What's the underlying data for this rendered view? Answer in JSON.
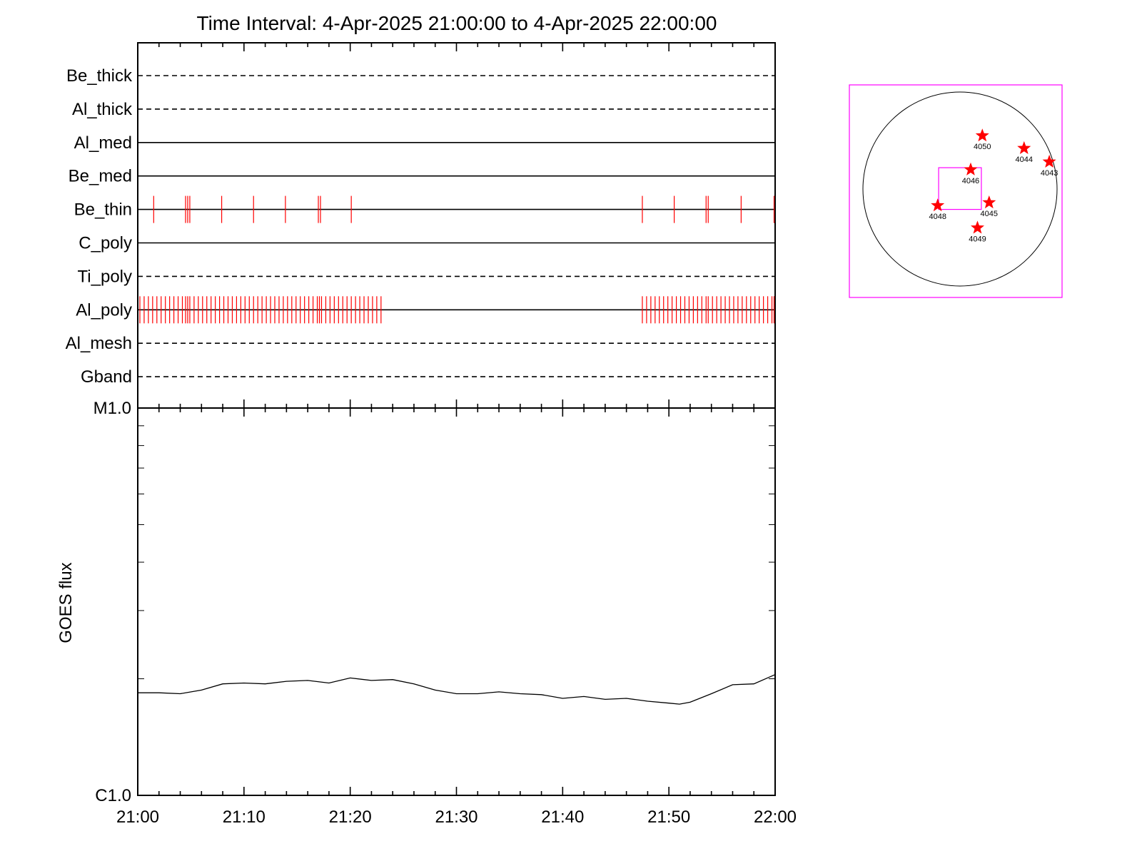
{
  "title": "Time Interval:  4-Apr-2025 21:00:00 to  4-Apr-2025 22:00:00",
  "colors": {
    "axis": "#000000",
    "events": "#ff0000",
    "frame": "#ff00ff",
    "curve": "#000000"
  },
  "chart_data": [
    {
      "type": "timeline",
      "name": "filter-status",
      "xlim": [
        "21:00",
        "22:00"
      ],
      "filters": [
        {
          "label": "Be_thick",
          "style": "dashed",
          "events": []
        },
        {
          "label": "Al_thick",
          "style": "dashed",
          "events": []
        },
        {
          "label": "Al_med",
          "style": "solid",
          "events": []
        },
        {
          "label": "Be_med",
          "style": "solid",
          "events": []
        },
        {
          "label": "Be_thin",
          "style": "solid",
          "events": [
            "21:01.5",
            "21:04.5",
            "21:04.7",
            "21:04.9",
            "21:07.9",
            "21:10.9",
            "21:13.9",
            "21:17.0",
            "21:17.2",
            "21:20.1",
            "21:47.5",
            "21:50.5",
            "21:53.5",
            "21:53.7",
            "21:56.8",
            "21:59.9"
          ]
        },
        {
          "label": "C_poly",
          "style": "solid",
          "events": []
        },
        {
          "label": "Ti_poly",
          "style": "dashed",
          "events": []
        },
        {
          "label": "Al_poly",
          "style": "solid",
          "events": [
            "21:00.2",
            "21:00.6",
            "21:01.0",
            "21:01.4",
            "21:01.8",
            "21:02.2",
            "21:02.6",
            "21:03.0",
            "21:03.4",
            "21:03.8",
            "21:04.2",
            "21:04.5",
            "21:04.7",
            "21:04.9",
            "21:05.3",
            "21:05.7",
            "21:06.1",
            "21:06.5",
            "21:06.9",
            "21:07.3",
            "21:07.7",
            "21:08.1",
            "21:08.5",
            "21:08.9",
            "21:09.3",
            "21:09.7",
            "21:10.1",
            "21:10.5",
            "21:10.9",
            "21:11.3",
            "21:11.7",
            "21:12.1",
            "21:12.5",
            "21:12.9",
            "21:13.3",
            "21:13.7",
            "21:14.1",
            "21:14.5",
            "21:14.9",
            "21:15.3",
            "21:15.7",
            "21:16.1",
            "21:16.5",
            "21:16.9",
            "21:17.1",
            "21:17.3",
            "21:17.7",
            "21:18.1",
            "21:18.5",
            "21:18.9",
            "21:19.3",
            "21:19.7",
            "21:20.1",
            "21:20.5",
            "21:20.9",
            "21:21.3",
            "21:21.7",
            "21:22.1",
            "21:22.5",
            "21:22.9",
            "21:47.5",
            "21:47.9",
            "21:48.3",
            "21:48.7",
            "21:49.1",
            "21:49.5",
            "21:49.9",
            "21:50.3",
            "21:50.7",
            "21:51.1",
            "21:51.5",
            "21:51.9",
            "21:52.3",
            "21:52.7",
            "21:53.1",
            "21:53.5",
            "21:53.7",
            "21:54.1",
            "21:54.5",
            "21:54.9",
            "21:55.3",
            "21:55.7",
            "21:56.1",
            "21:56.5",
            "21:56.9",
            "21:57.3",
            "21:57.7",
            "21:58.1",
            "21:58.5",
            "21:58.9",
            "21:59.3",
            "21:59.7",
            "21:59.9"
          ]
        },
        {
          "label": "Al_mesh",
          "style": "dashed",
          "events": []
        },
        {
          "label": "Gband",
          "style": "dashed",
          "events": []
        }
      ]
    },
    {
      "type": "line",
      "name": "goes-flux",
      "ylabel": "GOES flux",
      "yscale": "log",
      "ylim": [
        1e-06,
        1e-05
      ],
      "yticks": [
        {
          "value": 1e-06,
          "label": "C1.0"
        },
        {
          "value": 1e-05,
          "label": "M1.0"
        }
      ],
      "xlim": [
        "21:00",
        "22:00"
      ],
      "xticks": [
        "21:00",
        "21:10",
        "21:20",
        "21:30",
        "21:40",
        "21:50",
        "22:00"
      ],
      "x": [
        "21:00",
        "21:02",
        "21:04",
        "21:06",
        "21:08",
        "21:10",
        "21:12",
        "21:14",
        "21:16",
        "21:18",
        "21:20",
        "21:22",
        "21:24",
        "21:26",
        "21:28",
        "21:30",
        "21:32",
        "21:34",
        "21:36",
        "21:38",
        "21:40",
        "21:42",
        "21:44",
        "21:46",
        "21:48",
        "21:50",
        "21:51",
        "21:52",
        "21:54",
        "21:56",
        "21:58",
        "22:00"
      ],
      "y": [
        1.84e-06,
        1.84e-06,
        1.83e-06,
        1.87e-06,
        1.94e-06,
        1.95e-06,
        1.94e-06,
        1.97e-06,
        1.98e-06,
        1.95e-06,
        2.01e-06,
        1.98e-06,
        1.99e-06,
        1.94e-06,
        1.87e-06,
        1.83e-06,
        1.83e-06,
        1.85e-06,
        1.83e-06,
        1.82e-06,
        1.78e-06,
        1.8e-06,
        1.77e-06,
        1.78e-06,
        1.75e-06,
        1.73e-06,
        1.72e-06,
        1.74e-06,
        1.83e-06,
        1.93e-06,
        1.94e-06,
        2.05e-06
      ]
    },
    {
      "type": "scatter",
      "name": "solar-disk-map",
      "description_units": "heliocentric arcsec, +x west, +y north",
      "xlim": [
        -1100,
        1100
      ],
      "ylim": [
        -1100,
        1100
      ],
      "disk_radius": 1000,
      "field_of_view": {
        "x": [
          -220,
          220
        ],
        "y": [
          -210,
          220
        ]
      },
      "points": [
        {
          "label": "4050",
          "x": 230,
          "y": 550
        },
        {
          "label": "4044",
          "x": 660,
          "y": 420
        },
        {
          "label": "4043",
          "x": 920,
          "y": 280
        },
        {
          "label": "4046",
          "x": 110,
          "y": 200
        },
        {
          "label": "4045",
          "x": 300,
          "y": -140
        },
        {
          "label": "4048",
          "x": 230,
          "y": -170,
          "xsign": -1
        },
        {
          "label": "4049",
          "x": 180,
          "y": -400
        }
      ]
    }
  ]
}
